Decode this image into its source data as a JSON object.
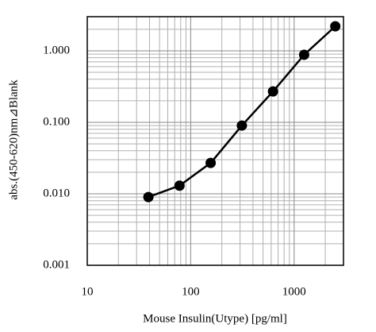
{
  "chart_data": {
    "type": "line",
    "xlabel": "Mouse Insulin(Utype) [pg/ml]",
    "ylabel": "abs.(450-620)nm⊿Blank",
    "x": [
      39,
      78,
      156,
      312.5,
      625,
      1250,
      2500
    ],
    "values": [
      0.009,
      0.013,
      0.027,
      0.09,
      0.27,
      0.88,
      2.2
    ],
    "color": "#000000",
    "xscale": "log",
    "yscale": "log",
    "xlim": [
      10,
      3000
    ],
    "ylim": [
      0.001,
      3
    ],
    "xticks": [
      10,
      100,
      1000
    ],
    "yticks": [
      {
        "value": 0.001,
        "label": "0.001"
      },
      {
        "value": 0.01,
        "label": "0.010"
      },
      {
        "value": 0.1,
        "label": "0.100"
      },
      {
        "value": 1,
        "label": "1.000"
      }
    ],
    "xminorticks": [
      20,
      30,
      40,
      50,
      60,
      70,
      80,
      90,
      200,
      300,
      400,
      500,
      600,
      700,
      800,
      900,
      2000
    ],
    "yminorticks": [
      0.002,
      0.003,
      0.004,
      0.005,
      0.006,
      0.007,
      0.008,
      0.009,
      0.02,
      0.03,
      0.04,
      0.05,
      0.06,
      0.07,
      0.08,
      0.09,
      0.2,
      0.3,
      0.4,
      0.5,
      0.6,
      0.7,
      0.8,
      0.9,
      2
    ],
    "grid": true
  }
}
